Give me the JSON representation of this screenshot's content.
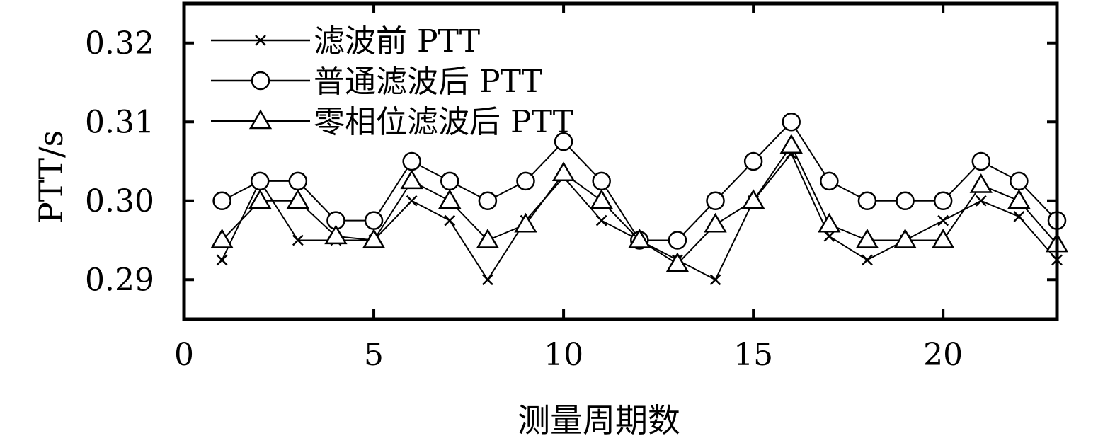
{
  "chart_data": {
    "type": "line",
    "xlabel": "测量周期数",
    "ylabel": "PTT/s",
    "xlim": [
      0,
      23
    ],
    "ylim": [
      0.285,
      0.325
    ],
    "x_ticks": [
      0,
      5,
      10,
      15,
      20
    ],
    "x_tick_labels": [
      "0",
      "5",
      "10",
      "15",
      "20"
    ],
    "y_ticks": [
      0.29,
      0.3,
      0.31,
      0.32
    ],
    "y_tick_labels": [
      "0.29",
      "0.30",
      "0.31",
      "0.32"
    ],
    "grid": false,
    "legend_position": "top-left",
    "x": [
      1,
      2,
      3,
      4,
      5,
      6,
      7,
      8,
      9,
      10,
      11,
      12,
      13,
      14,
      15,
      16,
      17,
      18,
      19,
      20,
      21,
      22,
      23
    ],
    "series": [
      {
        "name": "滤波前 PTT",
        "marker": "x",
        "values": [
          0.2925,
          0.3025,
          0.295,
          0.295,
          0.295,
          0.3,
          0.2975,
          0.29,
          0.2975,
          0.303,
          0.2975,
          0.295,
          0.2925,
          0.29,
          0.3,
          0.306,
          0.2955,
          0.2925,
          0.295,
          0.2975,
          0.3,
          0.298,
          0.2925
        ]
      },
      {
        "name": "普通滤波后 PTT",
        "marker": "circle",
        "values": [
          0.3,
          0.3025,
          0.3025,
          0.2975,
          0.2975,
          0.305,
          0.3025,
          0.3,
          0.3025,
          0.3075,
          0.3025,
          0.295,
          0.295,
          0.3,
          0.305,
          0.31,
          0.3025,
          0.3,
          0.3,
          0.3,
          0.305,
          0.3025,
          0.2975
        ]
      },
      {
        "name": "零相位滤波后 PTT",
        "marker": "triangle",
        "values": [
          0.295,
          0.3,
          0.3,
          0.2955,
          0.295,
          0.3025,
          0.3,
          0.295,
          0.297,
          0.3035,
          0.3,
          0.295,
          0.292,
          0.297,
          0.3,
          0.307,
          0.297,
          0.295,
          0.295,
          0.295,
          0.302,
          0.3,
          0.2945
        ]
      }
    ]
  }
}
